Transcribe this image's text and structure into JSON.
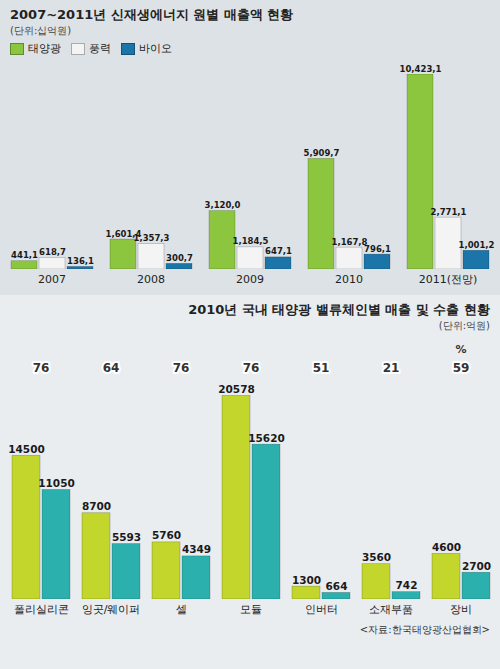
{
  "chart_data": [
    {
      "type": "bar",
      "title": "2007~2011년 신재생에너지 원별 매출액 현황",
      "subtitle": "(단위:십억원)",
      "categories": [
        "2007",
        "2008",
        "2009",
        "2010",
        "2011(전망)"
      ],
      "series": [
        {
          "name": "태양광",
          "color": "#8cc63f",
          "values": [
            441.1,
            1601.4,
            3120.0,
            5909.7,
            10423.1
          ],
          "value_labels": [
            "441,1",
            "1,601,4",
            "3,120,0",
            "5,909,7",
            "10,423,1"
          ]
        },
        {
          "name": "풍력",
          "color": "#f4f4f4",
          "values": [
            618.7,
            1357.3,
            1184.5,
            1167.8,
            2771.1
          ],
          "value_labels": [
            "618,7",
            "1,357,3",
            "1,184,5",
            "1,167,8",
            "2,771,1"
          ]
        },
        {
          "name": "바이오",
          "color": "#1b75a8",
          "values": [
            136.1,
            300.7,
            647.1,
            796.1,
            1001.2
          ],
          "value_labels": [
            "136,1",
            "300,7",
            "647,1",
            "796,1",
            "1,001,2"
          ]
        }
      ],
      "legend": "top-left",
      "data_labels": true,
      "tick_labels": "x"
    },
    {
      "type": "bar",
      "title": "2010년 국내 태양광 밸류체인별 매출 및 수출 현황",
      "subtitle": "(단위:억원)",
      "categories": [
        "폴리실리콘",
        "잉곳/웨이퍼",
        "셀",
        "모듈",
        "인버터",
        "소재부품",
        "장비"
      ],
      "series": [
        {
          "color": "#c2d62c",
          "values": [
            14500,
            8700,
            5760,
            20578,
            1300,
            3560,
            4600
          ]
        },
        {
          "color": "#2bb0ae",
          "values": [
            11050,
            5593,
            4349,
            15620,
            664,
            742,
            2700
          ]
        }
      ],
      "export_share": {
        "values": [
          76,
          64,
          76,
          76,
          51,
          21,
          59
        ],
        "unit_label": "%"
      },
      "data_labels": true,
      "tick_labels": "x",
      "source": "<자료:한국태양광산업협회>"
    }
  ]
}
